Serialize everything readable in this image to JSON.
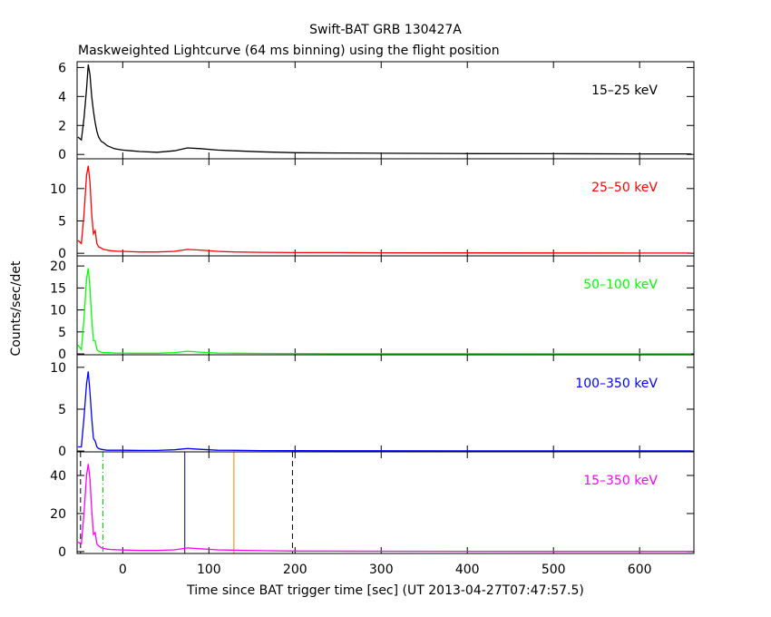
{
  "chart_data": [
    {
      "type": "line",
      "title": "Swift-BAT GRB 130427A",
      "subtitle": "Maskweighted Lightcurve (64 ms binning) using the flight position",
      "x": [
        -52,
        -48,
        -45,
        -42,
        -40,
        -38,
        -36,
        -34,
        -32,
        -30,
        -28,
        -25,
        -22,
        -18,
        -14,
        -10,
        -5,
        0,
        10,
        20,
        40,
        60,
        75,
        90,
        110,
        130,
        160,
        200,
        250,
        300,
        400,
        500,
        600,
        660
      ],
      "series": [
        {
          "name": "15–25 keV",
          "color": "#000000",
          "values": [
            1.2,
            1.0,
            2.5,
            4.5,
            6.2,
            5.5,
            4.0,
            3.0,
            2.2,
            1.6,
            1.2,
            0.9,
            0.8,
            0.6,
            0.5,
            0.4,
            0.35,
            0.3,
            0.25,
            0.2,
            0.15,
            0.25,
            0.45,
            0.4,
            0.3,
            0.25,
            0.18,
            0.12,
            0.1,
            0.08,
            0.06,
            0.05,
            0.04,
            0.04
          ]
        }
      ],
      "xlim": [
        -53,
        663
      ],
      "xticks": [
        0,
        100,
        200,
        300,
        400,
        500,
        600
      ],
      "ylim": [
        -0.3,
        6.4
      ],
      "yticks": [
        0,
        2,
        4,
        6
      ]
    },
    {
      "type": "line",
      "x": [
        -52,
        -48,
        -45,
        -42,
        -40,
        -38,
        -36,
        -34,
        -32,
        -30,
        -28,
        -25,
        -22,
        -18,
        -14,
        -10,
        -5,
        0,
        10,
        20,
        40,
        60,
        75,
        90,
        110,
        130,
        160,
        200,
        250,
        300,
        400,
        500,
        600,
        660
      ],
      "series": [
        {
          "name": "25–50 keV",
          "color": "#ff0000",
          "values": [
            2,
            1.5,
            6,
            12,
            13.5,
            11,
            6,
            3,
            3.5,
            1.5,
            1.0,
            0.8,
            0.6,
            0.5,
            0.4,
            0.35,
            0.3,
            0.3,
            0.25,
            0.2,
            0.2,
            0.3,
            0.6,
            0.5,
            0.3,
            0.2,
            0.15,
            0.1,
            0.1,
            0.08,
            0.06,
            0.05,
            0.04,
            0.04
          ]
        }
      ],
      "xlim": [
        -53,
        663
      ],
      "xticks": [
        0,
        100,
        200,
        300,
        400,
        500,
        600
      ],
      "ylim": [
        -0.4,
        14.6
      ],
      "yticks": [
        0,
        5,
        10
      ]
    },
    {
      "type": "line",
      "y_label": "Counts/sec/det",
      "x": [
        -52,
        -48,
        -45,
        -42,
        -40,
        -38,
        -36,
        -34,
        -32,
        -30,
        -28,
        -25,
        -22,
        -18,
        -14,
        -10,
        -5,
        0,
        10,
        20,
        40,
        60,
        75,
        90,
        110,
        130,
        160,
        200,
        250,
        300,
        400,
        500,
        600,
        660
      ],
      "series": [
        {
          "name": "50–100 keV",
          "color": "#00ff00",
          "values": [
            2,
            1,
            8,
            17,
            19.5,
            15,
            8,
            3,
            3,
            1,
            0.6,
            0.4,
            0.3,
            0.3,
            0.25,
            0.2,
            0.2,
            0.2,
            0.15,
            0.15,
            0.15,
            0.3,
            0.6,
            0.4,
            0.2,
            0.15,
            0.1,
            0.08,
            0.05,
            0.05,
            0.04,
            0.03,
            0.02,
            0.02
          ]
        }
      ],
      "xlim": [
        -53,
        663
      ],
      "xticks": [
        0,
        100,
        200,
        300,
        400,
        500,
        600
      ],
      "ylim": [
        -0.2,
        22.3
      ],
      "yticks": [
        0,
        5,
        10,
        15,
        20
      ]
    },
    {
      "type": "line",
      "x": [
        -52,
        -48,
        -45,
        -42,
        -40,
        -38,
        -36,
        -34,
        -32,
        -30,
        -28,
        -25,
        -22,
        -18,
        -14,
        -10,
        -5,
        0,
        10,
        20,
        40,
        60,
        75,
        90,
        110,
        130,
        160,
        200,
        250,
        300,
        400,
        500,
        600,
        660
      ],
      "series": [
        {
          "name": "100–350 keV",
          "color": "#0000ff",
          "values": [
            0.5,
            0.5,
            4,
            8,
            9.5,
            7,
            4,
            1.5,
            1.2,
            0.5,
            0.3,
            0.2,
            0.15,
            0.1,
            0.1,
            0.1,
            0.1,
            0.1,
            0.08,
            0.07,
            0.07,
            0.15,
            0.3,
            0.2,
            0.1,
            0.08,
            0.05,
            0.04,
            0.03,
            0.03,
            0.02,
            0.02,
            0.02,
            0.02
          ]
        }
      ],
      "xlim": [
        -53,
        663
      ],
      "xticks": [
        0,
        100,
        200,
        300,
        400,
        500,
        600
      ],
      "ylim": [
        -0.1,
        11.5
      ],
      "yticks": [
        0,
        5,
        10
      ]
    },
    {
      "type": "line",
      "x_label": "Time since BAT trigger time [sec] (UT 2013-04-27T07:47:57.5)",
      "x": [
        -52,
        -48,
        -45,
        -42,
        -40,
        -38,
        -36,
        -34,
        -32,
        -30,
        -28,
        -25,
        -22,
        -18,
        -14,
        -10,
        -5,
        0,
        10,
        20,
        40,
        60,
        75,
        90,
        110,
        130,
        160,
        200,
        250,
        300,
        400,
        500,
        600,
        660
      ],
      "series": [
        {
          "name": "15–350 keV",
          "color": "#ff00ff",
          "values": [
            5,
            4,
            20,
            40,
            46,
            38,
            22,
            9,
            10,
            4,
            3,
            2,
            1.6,
            1.3,
            1.1,
            1,
            0.9,
            0.8,
            0.7,
            0.6,
            0.6,
            0.9,
            1.9,
            1.5,
            0.9,
            0.7,
            0.5,
            0.3,
            0.25,
            0.2,
            0.15,
            0.12,
            0.1,
            0.1
          ]
        }
      ],
      "vlines": [
        {
          "x": -49,
          "color": "#000000",
          "style": "dashed"
        },
        {
          "x": -23,
          "color": "#00cc00",
          "style": "dashdot"
        },
        {
          "x": 72,
          "color": "#0000aa",
          "style": "solid"
        },
        {
          "x": 129,
          "color": "#ff8000",
          "style": "solid"
        },
        {
          "x": 197,
          "color": "#000000",
          "style": "dashed"
        }
      ],
      "xlim": [
        -53,
        663
      ],
      "xticks": [
        0,
        100,
        200,
        300,
        400,
        500,
        600
      ],
      "ylim": [
        -1,
        52.4
      ],
      "yticks": [
        0,
        20,
        40
      ]
    }
  ]
}
